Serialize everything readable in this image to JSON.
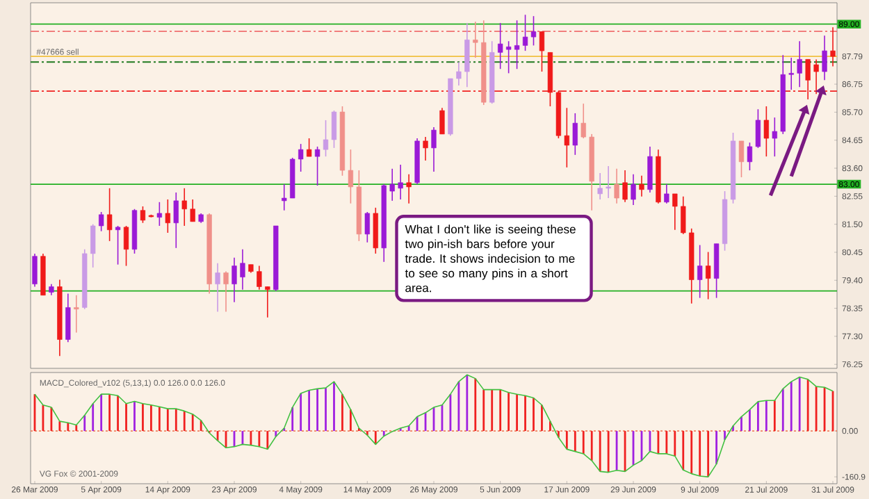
{
  "chart_data": [
    {
      "type": "candlestick",
      "categories": [
        null,
        null,
        null,
        null,
        null,
        null,
        null,
        null,
        null,
        null,
        null,
        null,
        null,
        null,
        null,
        null,
        null,
        null,
        null,
        null,
        null,
        null,
        null,
        null,
        null,
        null,
        null,
        null,
        null,
        null,
        null,
        null,
        null,
        null,
        null,
        null,
        null,
        null,
        null,
        null,
        null,
        null,
        null,
        null,
        null,
        null,
        null,
        null,
        null,
        null,
        null,
        null,
        null,
        null,
        null,
        null,
        null,
        null,
        null,
        null,
        null,
        null,
        null,
        null,
        null,
        null,
        null,
        null,
        null,
        null,
        null,
        null,
        null,
        null,
        null,
        null,
        null,
        null,
        null,
        null,
        null,
        null,
        null,
        null,
        null,
        null,
        null,
        null,
        null,
        null,
        null,
        null,
        null,
        null,
        null,
        null,
        null
      ],
      "ohlc": [
        [
          79.26,
          80.4,
          79.16,
          80.3
        ],
        [
          80.3,
          80.4,
          78.84,
          78.84
        ],
        [
          78.95,
          79.26,
          78.84,
          79.16
        ],
        [
          79.16,
          79.42,
          76.56,
          77.18
        ],
        [
          77.18,
          78.9,
          77.08,
          78.38
        ],
        [
          78.38,
          78.84,
          77.44,
          78.32
        ],
        [
          78.38,
          80.56,
          78.32,
          80.4
        ],
        [
          80.4,
          81.5,
          79.88,
          81.44
        ],
        [
          81.44,
          81.96,
          81.24,
          81.86
        ],
        [
          81.86,
          82.85,
          80.87,
          81.29
        ],
        [
          81.29,
          81.44,
          79.99,
          81.39
        ],
        [
          81.39,
          81.44,
          79.94,
          80.56
        ],
        [
          80.56,
          82.07,
          80.4,
          82.02
        ],
        [
          82.02,
          82.17,
          81.55,
          81.65
        ],
        [
          81.83,
          81.86,
          81.76,
          81.78
        ],
        [
          81.76,
          82.33,
          81.44,
          81.91
        ],
        [
          81.91,
          82.43,
          81.18,
          81.55
        ],
        [
          81.55,
          82.69,
          80.61,
          82.38
        ],
        [
          82.38,
          82.85,
          81.44,
          82.07
        ],
        [
          82.07,
          82.43,
          81.6,
          81.6
        ],
        [
          81.6,
          81.91,
          81.55,
          81.86
        ],
        [
          81.86,
          81.91,
          78.9,
          79.26
        ],
        [
          79.26,
          80.04,
          78.22,
          79.68
        ],
        [
          79.68,
          79.73,
          78.22,
          79.26
        ],
        [
          79.26,
          80.25,
          78.58,
          79.94
        ],
        [
          79.52,
          80.56,
          79.05,
          80.04
        ],
        [
          79.99,
          79.99,
          79.68,
          79.73
        ],
        [
          79.73,
          79.94,
          79.05,
          79.16
        ],
        [
          79.16,
          79.16,
          78.01,
          79.05
        ],
        [
          79.05,
          81.44,
          79.0,
          81.44
        ],
        [
          82.38,
          83.0,
          82.02,
          82.48
        ],
        [
          82.48,
          83.99,
          82.48,
          83.94
        ],
        [
          83.94,
          84.51,
          83.47,
          84.3
        ],
        [
          84.3,
          84.72,
          84.04,
          84.04
        ],
        [
          84.04,
          84.41,
          82.95,
          84.3
        ],
        [
          84.3,
          85.4,
          84.04,
          84.67
        ],
        [
          84.67,
          85.76,
          84.36,
          85.71
        ],
        [
          85.71,
          85.92,
          83.32,
          83.52
        ],
        [
          83.52,
          84.3,
          82.28,
          82.9
        ],
        [
          82.9,
          83.52,
          80.87,
          81.13
        ],
        [
          81.13,
          81.96,
          80.82,
          81.91
        ],
        [
          81.91,
          82.12,
          80.4,
          80.61
        ],
        [
          80.61,
          83.0,
          80.09,
          82.95
        ],
        [
          82.74,
          83.58,
          82.38,
          83.0
        ],
        [
          82.85,
          83.73,
          82.43,
          83.06
        ],
        [
          83.06,
          83.37,
          82.28,
          82.9
        ],
        [
          83.06,
          84.72,
          83.0,
          84.62
        ],
        [
          84.62,
          84.77,
          83.89,
          84.36
        ],
        [
          84.36,
          85.14,
          83.47,
          85.03
        ],
        [
          85.76,
          85.86,
          84.88,
          84.88
        ],
        [
          84.88,
          86.96,
          84.82,
          86.96
        ],
        [
          86.96,
          87.58,
          86.7,
          87.22
        ],
        [
          87.22,
          89.04,
          86.64,
          88.41
        ],
        [
          88.41,
          89.09,
          87.74,
          88.31
        ],
        [
          88.31,
          89.14,
          85.97,
          86.07
        ],
        [
          86.07,
          88.36,
          86.02,
          87.94
        ],
        [
          87.94,
          89.04,
          87.32,
          88.26
        ],
        [
          88.05,
          88.36,
          87.16,
          88.15
        ],
        [
          88.05,
          89.14,
          87.32,
          88.2
        ],
        [
          88.2,
          89.35,
          88.0,
          88.52
        ],
        [
          88.52,
          89.3,
          88.2,
          88.72
        ],
        [
          88.72,
          88.72,
          87.22,
          88.0
        ],
        [
          87.94,
          87.94,
          85.92,
          86.44
        ],
        [
          86.44,
          86.49,
          84.72,
          84.82
        ],
        [
          84.82,
          85.86,
          83.63,
          84.46
        ],
        [
          84.46,
          85.66,
          84.1,
          85.29
        ],
        [
          85.29,
          86.02,
          84.72,
          84.77
        ],
        [
          84.77,
          84.88,
          82.02,
          83.11
        ],
        [
          82.64,
          83.42,
          82.43,
          82.85
        ],
        [
          82.85,
          83.68,
          82.48,
          82.9
        ],
        [
          83.0,
          83.58,
          82.28,
          82.48
        ],
        [
          83.06,
          83.52,
          82.33,
          82.43
        ],
        [
          82.43,
          83.37,
          82.22,
          83.0
        ],
        [
          83.0,
          83.32,
          82.54,
          82.8
        ],
        [
          82.8,
          84.41,
          82.69,
          84.04
        ],
        [
          84.04,
          84.3,
          82.28,
          82.33
        ],
        [
          82.33,
          83.0,
          82.28,
          82.64
        ],
        [
          82.64,
          82.64,
          81.29,
          82.17
        ],
        [
          82.17,
          82.54,
          81.13,
          81.18
        ],
        [
          81.18,
          81.34,
          78.53,
          79.42
        ],
        [
          79.42,
          80.72,
          78.74,
          79.94
        ],
        [
          79.94,
          80.46,
          78.69,
          79.47
        ],
        [
          79.47,
          80.77,
          78.74,
          80.77
        ],
        [
          80.77,
          82.74,
          80.51,
          82.43
        ],
        [
          82.43,
          84.93,
          82.28,
          84.62
        ],
        [
          84.62,
          84.62,
          83.26,
          83.84
        ],
        [
          83.84,
          84.56,
          83.52,
          84.41
        ],
        [
          84.41,
          85.81,
          84.36,
          85.4
        ],
        [
          85.4,
          85.92,
          84.04,
          84.72
        ],
        [
          84.72,
          85.5,
          84.04,
          84.98
        ],
        [
          84.98,
          87.84,
          84.88,
          87.11
        ],
        [
          87.11,
          87.74,
          86.54,
          87.16
        ],
        [
          87.16,
          88.36,
          86.64,
          87.68
        ],
        [
          87.68,
          87.68,
          86.18,
          86.9
        ],
        [
          87.48,
          87.68,
          86.38,
          87.22
        ],
        [
          87.22,
          88.57,
          86.9,
          88.0
        ],
        [
          88.0,
          88.88,
          87.42,
          87.79
        ]
      ],
      "colors": [
        "#9a1ad6",
        "#f01a1a",
        "#9a1ad6",
        "#f01a1a",
        "#9a1ad6",
        "#f0908a",
        "#c99ae6",
        "#c99ae6",
        "#9a1ad6",
        "#f01a1a",
        "#9a1ad6",
        "#f01a1a",
        "#9a1ad6",
        "#f01a1a",
        "#f01a1a",
        "#9a1ad6",
        "#f01a1a",
        "#9a1ad6",
        "#f01a1a",
        "#f01a1a",
        "#9a1ad6",
        "#f0908a",
        "#c99ae6",
        "#f0908a",
        "#9a1ad6",
        "#9a1ad6",
        "#f01a1a",
        "#f01a1a",
        "#f01a1a",
        "#9a1ad6",
        "#9a1ad6",
        "#9a1ad6",
        "#9a1ad6",
        "#f01a1a",
        "#9a1ad6",
        "#c99ae6",
        "#c99ae6",
        "#f0908a",
        "#f0908a",
        "#f0908a",
        "#9a1ad6",
        "#f01a1a",
        "#9a1ad6",
        "#9a1ad6",
        "#9a1ad6",
        "#f01a1a",
        "#9a1ad6",
        "#f01a1a",
        "#9a1ad6",
        "#f01a1a",
        "#c99ae6",
        "#c99ae6",
        "#c99ae6",
        "#f0908a",
        "#f0908a",
        "#c99ae6",
        "#9a1ad6",
        "#9a1ad6",
        "#9a1ad6",
        "#9a1ad6",
        "#9a1ad6",
        "#f01a1a",
        "#f01a1a",
        "#f01a1a",
        "#f01a1a",
        "#9a1ad6",
        "#f0908a",
        "#f0908a",
        "#c99ae6",
        "#c99ae6",
        "#f0908a",
        "#f01a1a",
        "#9a1ad6",
        "#f01a1a",
        "#9a1ad6",
        "#f01a1a",
        "#9a1ad6",
        "#f01a1a",
        "#f01a1a",
        "#f01a1a",
        "#9a1ad6",
        "#f01a1a",
        "#9a1ad6",
        "#c99ae6",
        "#c99ae6",
        "#f0908a",
        "#9a1ad6",
        "#9a1ad6",
        "#f01a1a",
        "#9a1ad6",
        "#9a1ad6",
        "#9a1ad6",
        "#9a1ad6",
        "#f01a1a",
        "#f01a1a",
        "#9a1ad6",
        "#f01a1a"
      ],
      "ylim": [
        76.1,
        89.8
      ],
      "yticks": [
        {
          "value": 76.25,
          "label": "76.25"
        },
        {
          "value": 77.3,
          "label": "77.30"
        },
        {
          "value": 78.35,
          "label": "78.35"
        },
        {
          "value": 79.4,
          "label": "79.40"
        },
        {
          "value": 80.45,
          "label": "80.45"
        },
        {
          "value": 81.5,
          "label": "81.50"
        },
        {
          "value": 82.55,
          "label": "82.55"
        },
        {
          "value": 83.6,
          "label": "83.60"
        },
        {
          "value": 84.65,
          "label": "84.65"
        },
        {
          "value": 85.7,
          "label": "85.70"
        },
        {
          "value": 86.75,
          "label": "86.75"
        },
        {
          "value": 87.79,
          "label": "87.79"
        }
      ],
      "ref_lines": [
        {
          "axis": "y",
          "value": 89.0,
          "label": "89.00",
          "color": "#22b022",
          "line_style": "solid"
        },
        {
          "axis": "y",
          "value": 88.73,
          "color": "#f07070",
          "line_style": "dashed"
        },
        {
          "axis": "y",
          "value": 87.79,
          "color": "#f0c040",
          "line_style": "solid"
        },
        {
          "axis": "y",
          "value": 87.58,
          "color": "#207a20",
          "line_style": "dashed"
        },
        {
          "axis": "y",
          "value": 86.49,
          "color": "#f02020",
          "line_style": "dashed"
        },
        {
          "axis": "y",
          "value": 83.0,
          "label": "83.00",
          "color": "#22b022",
          "line_style": "solid"
        },
        {
          "axis": "y",
          "value": 79.0,
          "color": "#22b022",
          "line_style": "solid"
        }
      ],
      "annotations": [
        {
          "text": "#47666 sell",
          "y": 87.79
        },
        "What I don't like is seeing these two pin-ish bars before your trade. It shows indecision to me to see so many pins in a short area."
      ],
      "tick_labels": "y"
    },
    {
      "type": "bar",
      "title": "MACD_Colored_v102 (5,13,1) 0.0 126.0 0.0 126.0",
      "categories": [
        "26 Mar 2009",
        null,
        null,
        null,
        null,
        null,
        null,
        null,
        "5 Apr 2009",
        null,
        null,
        null,
        null,
        null,
        null,
        null,
        "14 Apr 2009",
        null,
        null,
        null,
        null,
        null,
        null,
        null,
        "23 Apr 2009",
        null,
        null,
        null,
        null,
        null,
        null,
        null,
        "4 May 2009",
        null,
        null,
        null,
        null,
        null,
        null,
        null,
        "14 May 2009",
        null,
        null,
        null,
        null,
        null,
        null,
        null,
        "26 May 2009",
        null,
        null,
        null,
        null,
        null,
        null,
        null,
        "5 Jun 2009",
        null,
        null,
        null,
        null,
        null,
        null,
        null,
        "17 Jun 2009",
        null,
        null,
        null,
        null,
        null,
        null,
        null,
        "29 Jun 2009",
        null,
        null,
        null,
        null,
        null,
        null,
        null,
        "9 Jul 2009",
        null,
        null,
        null,
        null,
        null,
        null,
        null,
        "21 Jul 2009",
        null,
        null,
        null,
        null,
        null,
        null,
        null,
        "31 Jul 2009"
      ],
      "series": [
        {
          "type": "bar",
          "values": [
            129,
            91,
            83,
            34,
            29,
            21,
            55,
            96,
            129,
            129,
            124,
            96,
            104,
            96,
            91,
            85,
            78,
            78,
            70,
            59,
            37,
            -7,
            -34,
            -59,
            -55,
            -47,
            -50,
            -55,
            -64,
            -20,
            10,
            83,
            132,
            143,
            148,
            151,
            173,
            129,
            75,
            10,
            -15,
            -47,
            -18,
            null,
            10,
            18,
            50,
            64,
            83,
            91,
            129,
            173,
            197,
            184,
            145,
            145,
            145,
            135,
            129,
            124,
            116,
            91,
            34,
            -23,
            -64,
            -72,
            -80,
            -104,
            -142,
            -145,
            -138,
            -142,
            -120,
            -104,
            -72,
            -80,
            -80,
            -88,
            -137,
            -150,
            -158,
            -161,
            -116,
            -31,
            18,
            50,
            75,
            103,
            107,
            107,
            148,
            173,
            189,
            181,
            156,
            153,
            140
          ],
          "colors": [
            "#f02020",
            "#f02020",
            "#f02020",
            "#f02020",
            "#f02020",
            "#f02020",
            "#a020e0",
            "#a020e0",
            "#a020e0",
            "#f02020",
            "#f02020",
            "#f02020",
            "#a020e0",
            "#f02020",
            "#f02020",
            "#f02020",
            "#f02020",
            "#f02020",
            "#f02020",
            "#f02020",
            "#f02020",
            "#f02020",
            "#f02020",
            "#f02020",
            "#a020e0",
            "#a020e0",
            "#f02020",
            "#f02020",
            "#f02020",
            "#a020e0",
            "#a020e0",
            "#a020e0",
            "#a020e0",
            "#a020e0",
            "#a020e0",
            "#a020e0",
            "#a020e0",
            "#f02020",
            "#f02020",
            "#f02020",
            "#f02020",
            "#f02020",
            "#a020e0",
            "#a020e0",
            "#a020e0",
            "#a020e0",
            "#a020e0",
            "#a020e0",
            "#a020e0",
            "#a020e0",
            "#a020e0",
            "#a020e0",
            "#a020e0",
            "#f02020",
            "#f02020",
            "#f02020",
            "#f02020",
            "#f02020",
            "#f02020",
            "#f02020",
            "#f02020",
            "#f02020",
            "#f02020",
            "#f02020",
            "#f02020",
            "#f02020",
            "#f02020",
            "#f02020",
            "#f02020",
            "#f02020",
            "#a020e0",
            "#f02020",
            "#a020e0",
            "#a020e0",
            "#a020e0",
            "#f02020",
            "#f02020",
            "#f02020",
            "#f02020",
            "#f02020",
            "#f02020",
            "#f02020",
            "#a020e0",
            "#a020e0",
            "#a020e0",
            "#a020e0",
            "#a020e0",
            "#a020e0",
            "#a020e0",
            "#f02020",
            "#a020e0",
            "#a020e0",
            "#a020e0",
            "#f02020",
            "#f02020",
            "#f02020",
            "#f02020"
          ]
        },
        {
          "type": "line",
          "color": "#40c040",
          "values": [
            129,
            91,
            83,
            34,
            29,
            21,
            55,
            96,
            129,
            129,
            124,
            96,
            104,
            96,
            91,
            85,
            78,
            78,
            70,
            59,
            37,
            -7,
            -34,
            -59,
            -55,
            -47,
            -50,
            -55,
            -64,
            -20,
            10,
            83,
            132,
            143,
            148,
            151,
            173,
            129,
            75,
            10,
            -15,
            -47,
            -18,
            -2,
            10,
            18,
            50,
            64,
            83,
            91,
            129,
            173,
            197,
            184,
            145,
            145,
            145,
            135,
            129,
            124,
            116,
            91,
            34,
            -23,
            -64,
            -72,
            -80,
            -104,
            -142,
            -145,
            -138,
            -142,
            -120,
            -104,
            -72,
            -80,
            -80,
            -88,
            -137,
            -150,
            -158,
            -161,
            -116,
            -31,
            18,
            50,
            75,
            103,
            107,
            107,
            148,
            173,
            189,
            181,
            156,
            153,
            140
          ]
        }
      ],
      "ylim": [
        -185,
        205
      ],
      "yticks": [
        {
          "value": 0,
          "label": "0.00"
        },
        {
          "value": -160.9,
          "label": "-160.9"
        }
      ],
      "ref_lines": [
        {
          "axis": "y",
          "value": 0,
          "color": "#f08060",
          "line_style": "dotted"
        }
      ],
      "annotations": [
        "VG Fox © 2001-2009"
      ]
    }
  ]
}
